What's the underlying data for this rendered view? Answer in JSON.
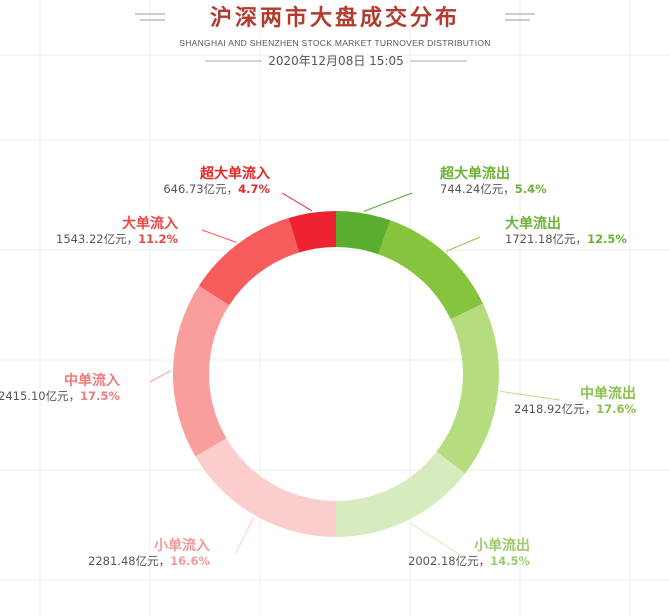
{
  "header": {
    "title": "沪深两市大盘成交分布",
    "subtitle": "SHANGHAI AND SHENZHEN STOCK MARKET TURNOVER DISTRIBUTION",
    "datetime": "2020年12月08日 15:05"
  },
  "chart_data": {
    "type": "donut",
    "unit": "亿元",
    "slices": [
      {
        "name": "超大单流出",
        "value": 744.24,
        "value_label": "744.24亿元",
        "percent_label": "5.4%",
        "color": "#5aad2e",
        "text_color": "#6ab334"
      },
      {
        "name": "大单流出",
        "value": 1721.18,
        "value_label": "1721.18亿元",
        "percent_label": "12.5%",
        "color": "#86c43e",
        "text_color": "#6ab334"
      },
      {
        "name": "中单流出",
        "value": 2418.92,
        "value_label": "2418.92亿元",
        "percent_label": "17.6%",
        "color": "#b5dd80",
        "text_color": "#8cbf4e"
      },
      {
        "name": "小单流出",
        "value": 2002.18,
        "value_label": "2002.18亿元",
        "percent_label": "14.5%",
        "color": "#d6ecbe",
        "text_color": "#9ccb6c"
      },
      {
        "name": "小单流入",
        "value": 2281.48,
        "value_label": "2281.48亿元",
        "percent_label": "16.6%",
        "color": "#fccdcd",
        "text_color": "#f19a9a"
      },
      {
        "name": "中单流入",
        "value": 2415.1,
        "value_label": "2415.10亿元",
        "percent_label": "17.5%",
        "color": "#fa9d9d",
        "text_color": "#ee7b7b"
      },
      {
        "name": "大单流入",
        "value": 1543.22,
        "value_label": "1543.22亿元",
        "percent_label": "11.2%",
        "color": "#f65c5c",
        "text_color": "#e84848"
      },
      {
        "name": "超大单流入",
        "value": 646.73,
        "value_label": "646.73亿元",
        "percent_label": "4.7%",
        "color": "#ee2233",
        "text_color": "#e02828"
      }
    ]
  }
}
